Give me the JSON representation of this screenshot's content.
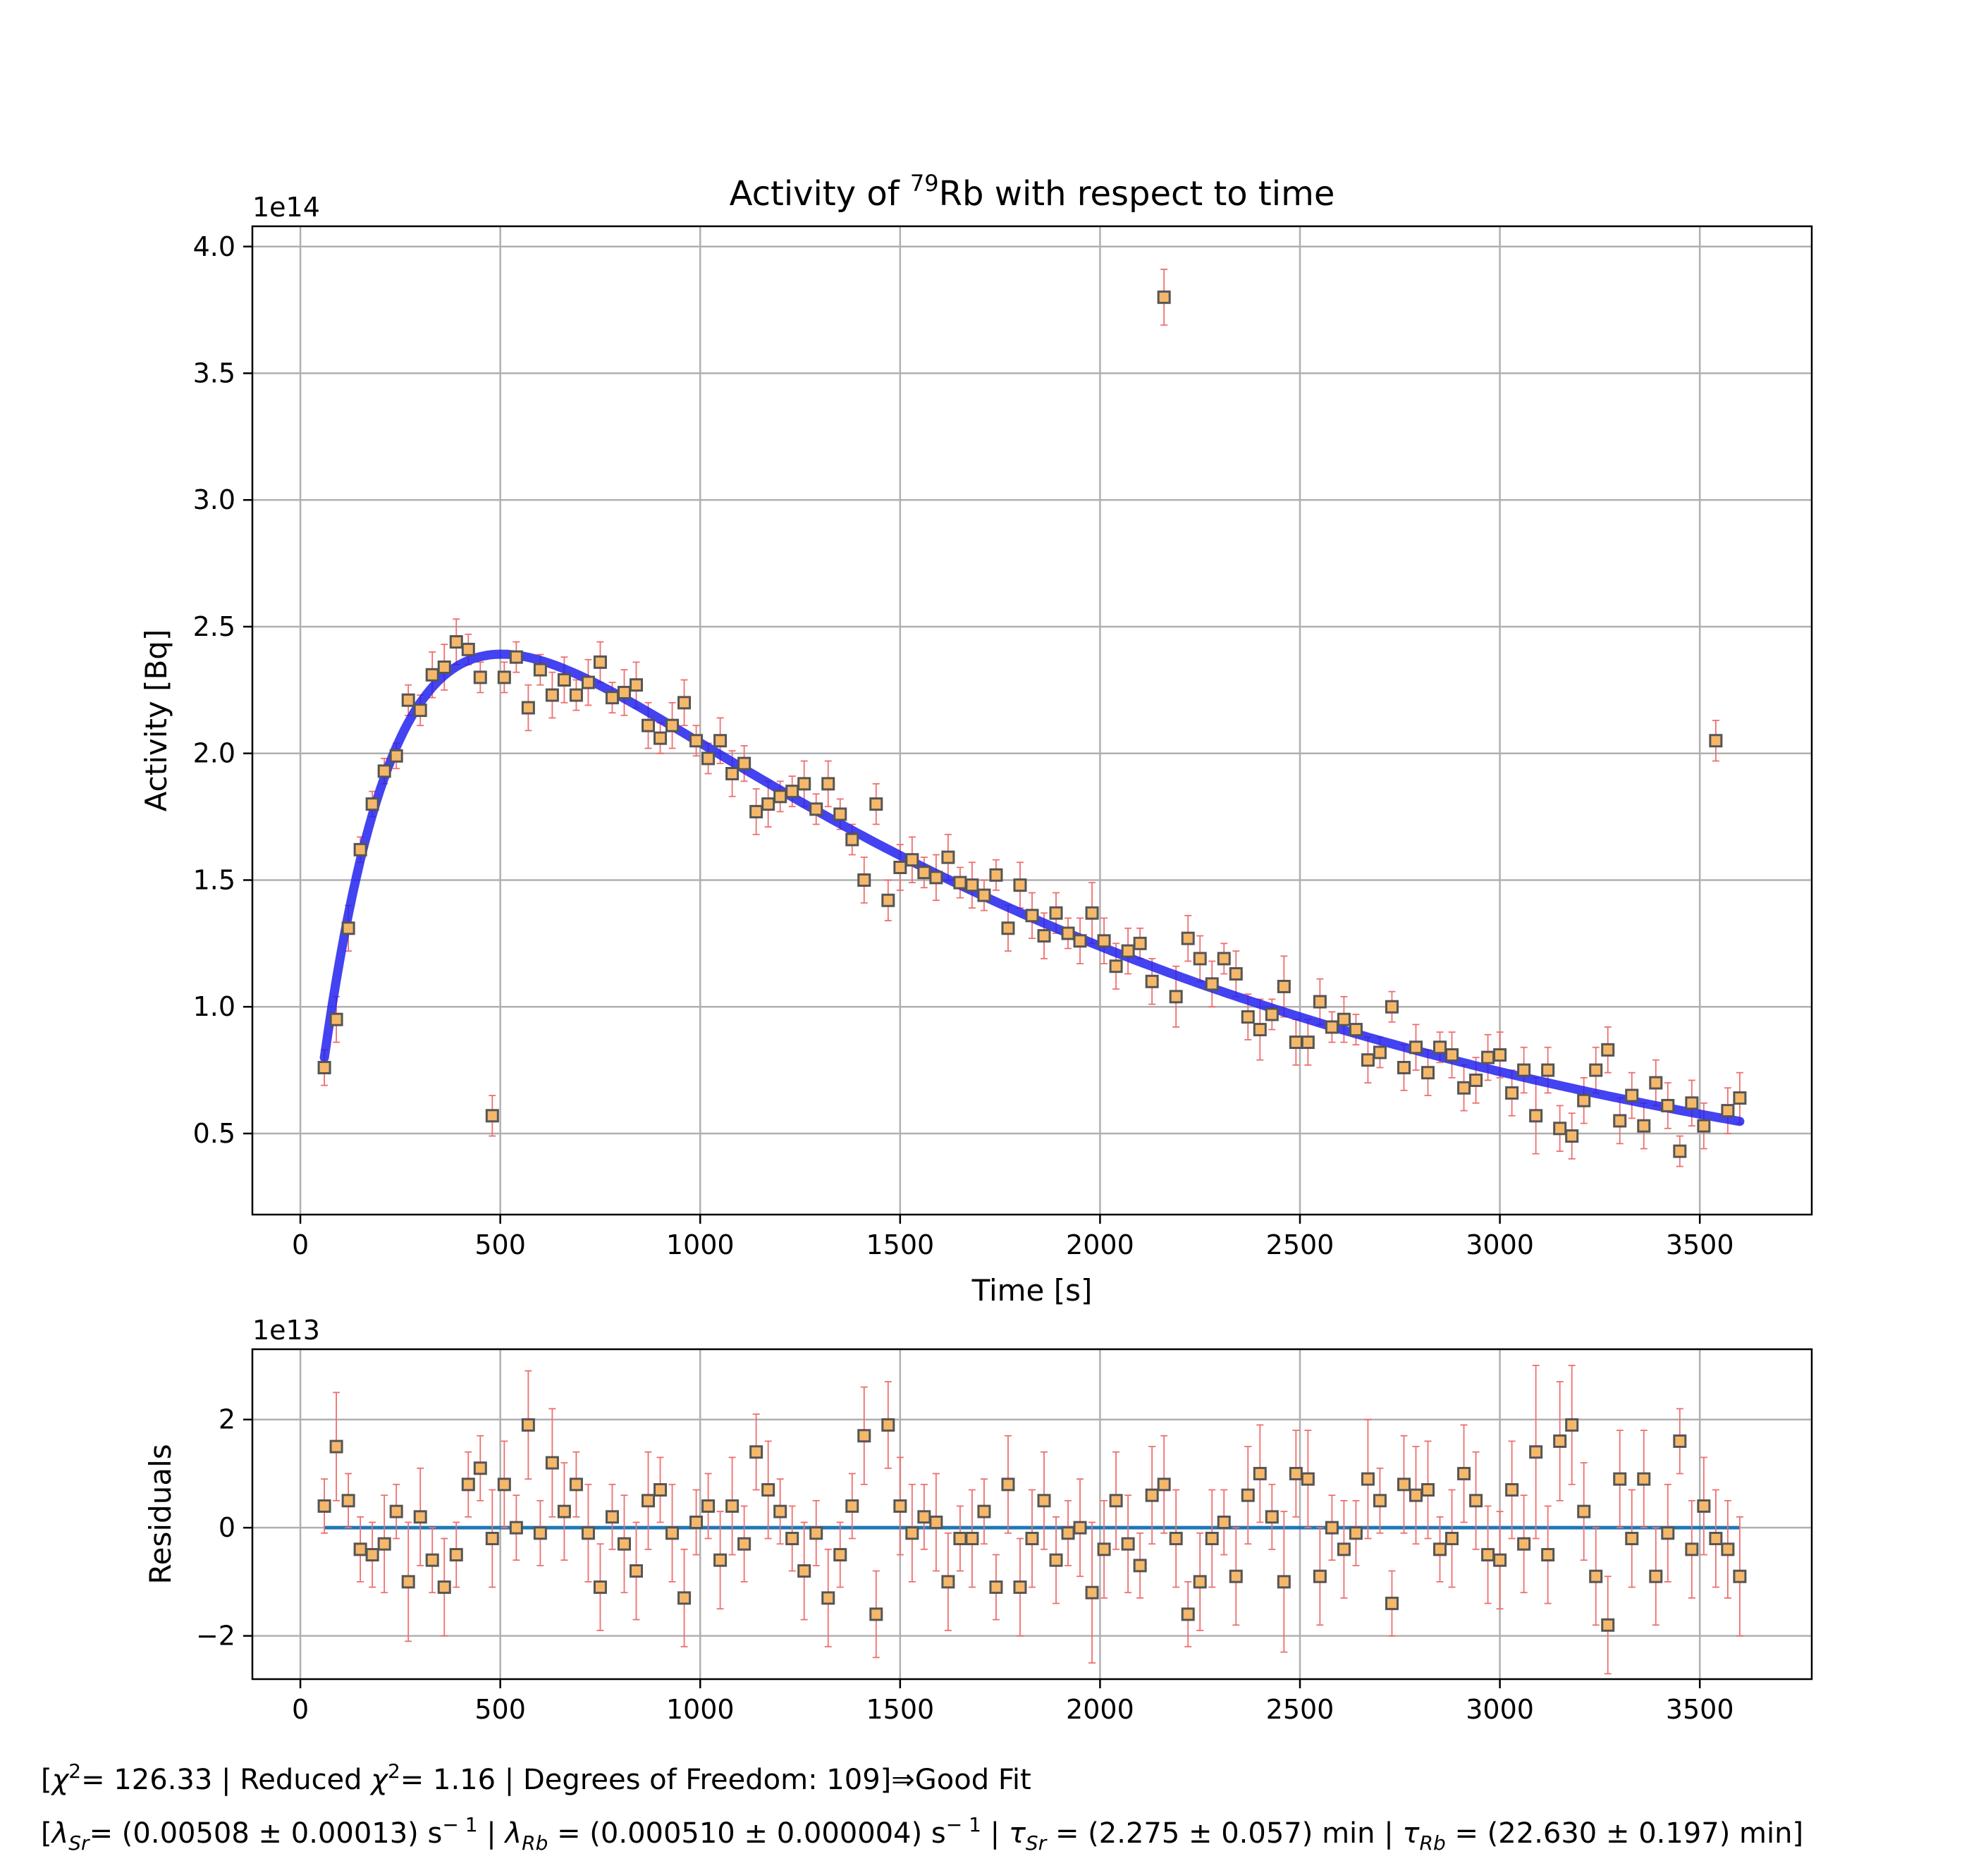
{
  "chart_data": [
    {
      "type": "scatter",
      "title": "Activity of 79Rb with respect to time",
      "title_parts": {
        "pre": "Activity of ",
        "sup": "79",
        "post": "Rb with respect to time"
      },
      "xlabel": "Time [s]",
      "ylabel": "Activity [Bq]",
      "offset_text": "1e14",
      "xlim": [
        -120,
        3780
      ],
      "ylim": [
        0.18,
        4.08
      ],
      "xticks": [
        0,
        500,
        1000,
        1500,
        2000,
        2500,
        3000,
        3500
      ],
      "xtick_labels": [
        "0",
        "500",
        "1000",
        "1500",
        "2000",
        "2500",
        "3000",
        "3500"
      ],
      "yticks": [
        0.5,
        1.0,
        1.5,
        2.0,
        2.5,
        3.0,
        3.5,
        4.0
      ],
      "ytick_labels": [
        "0.5",
        "1.0",
        "1.5",
        "2.0",
        "2.5",
        "3.0",
        "3.5",
        "4.0"
      ],
      "grid": true,
      "fit_color": "#2222ee",
      "point_color": "#f5b86a",
      "error_color": "#ef6f6f",
      "fit": {
        "model": "bateman",
        "lambda_sr": 0.00508,
        "lambda_rb": 0.00051,
        "x_range": [
          60,
          3600
        ]
      },
      "x": [
        60,
        90,
        120,
        150,
        180,
        210,
        240,
        270,
        300,
        330,
        360,
        390,
        420,
        450,
        480,
        510,
        540,
        570,
        600,
        630,
        660,
        690,
        720,
        750,
        780,
        810,
        840,
        870,
        900,
        930,
        960,
        990,
        1020,
        1050,
        1080,
        1110,
        1140,
        1170,
        1200,
        1230,
        1260,
        1290,
        1320,
        1350,
        1380,
        1410,
        1440,
        1470,
        1500,
        1530,
        1560,
        1590,
        1620,
        1650,
        1680,
        1710,
        1740,
        1770,
        1800,
        1830,
        1860,
        1890,
        1920,
        1950,
        1980,
        2010,
        2040,
        2070,
        2100,
        2130,
        2160,
        2190,
        2220,
        2250,
        2280,
        2310,
        2340,
        2370,
        2400,
        2430,
        2460,
        2490,
        2520,
        2550,
        2580,
        2610,
        2640,
        2670,
        2700,
        2730,
        2760,
        2790,
        2820,
        2850,
        2880,
        2910,
        2940,
        2970,
        3000,
        3030,
        3060,
        3090,
        3120,
        3150,
        3180,
        3210,
        3240,
        3270,
        3300,
        3330,
        3360,
        3390,
        3420,
        3450,
        3480,
        3510,
        3540,
        3570,
        3600
      ],
      "y": [
        0.76,
        0.95,
        1.31,
        1.62,
        1.8,
        1.93,
        1.99,
        2.21,
        2.17,
        2.31,
        2.34,
        2.44,
        2.41,
        2.3,
        0.57,
        2.3,
        2.38,
        2.18,
        2.33,
        2.23,
        2.29,
        2.23,
        2.28,
        2.36,
        2.22,
        2.24,
        2.27,
        2.11,
        2.06,
        2.11,
        2.2,
        2.05,
        1.98,
        2.05,
        1.92,
        1.96,
        1.77,
        1.8,
        1.83,
        1.85,
        1.88,
        1.78,
        1.88,
        1.76,
        1.66,
        1.5,
        1.8,
        1.42,
        1.55,
        1.58,
        1.53,
        1.51,
        1.59,
        1.49,
        1.48,
        1.44,
        1.52,
        1.31,
        1.48,
        1.36,
        1.28,
        1.37,
        1.29,
        1.26,
        1.37,
        1.26,
        1.16,
        1.22,
        1.25,
        1.1,
        3.8,
        1.04,
        1.27,
        1.19,
        1.09,
        1.19,
        1.13,
        0.96,
        0.91,
        0.97,
        1.08,
        0.86,
        0.86,
        1.02,
        0.92,
        0.95,
        0.91,
        0.79,
        0.82,
        1.0,
        0.76,
        0.84,
        0.74,
        0.84,
        0.81,
        0.68,
        0.71,
        0.8,
        0.81,
        0.66,
        0.75,
        0.57,
        0.75,
        0.52,
        0.49,
        0.63,
        0.75,
        0.83,
        0.55,
        0.65,
        0.53,
        0.7,
        0.61,
        0.43,
        0.62,
        0.53,
        2.05,
        0.59,
        0.64
      ],
      "yerr": [
        0.07,
        0.09,
        0.09,
        0.05,
        0.05,
        0.05,
        0.05,
        0.06,
        0.06,
        0.09,
        0.09,
        0.09,
        0.06,
        0.06,
        0.08,
        0.06,
        0.06,
        0.09,
        0.06,
        0.09,
        0.09,
        0.06,
        0.09,
        0.08,
        0.06,
        0.09,
        0.09,
        0.09,
        0.06,
        0.09,
        0.09,
        0.06,
        0.06,
        0.09,
        0.09,
        0.07,
        0.09,
        0.09,
        0.06,
        0.06,
        0.09,
        0.06,
        0.09,
        0.06,
        0.06,
        0.09,
        0.08,
        0.08,
        0.09,
        0.09,
        0.06,
        0.09,
        0.09,
        0.06,
        0.09,
        0.06,
        0.06,
        0.09,
        0.09,
        0.09,
        0.09,
        0.08,
        0.06,
        0.09,
        0.12,
        0.09,
        0.09,
        0.09,
        0.06,
        0.09,
        0.11,
        0.12,
        0.09,
        0.09,
        0.09,
        0.06,
        0.09,
        0.09,
        0.12,
        0.06,
        0.12,
        0.09,
        0.09,
        0.09,
        0.06,
        0.09,
        0.06,
        0.09,
        0.06,
        0.06,
        0.09,
        0.09,
        0.09,
        0.06,
        0.09,
        0.09,
        0.09,
        0.09,
        0.09,
        0.09,
        0.09,
        0.15,
        0.09,
        0.09,
        0.09,
        0.09,
        0.09,
        0.09,
        0.09,
        0.09,
        0.09,
        0.09,
        0.09,
        0.06,
        0.09,
        0.09,
        0.08,
        0.09,
        0.1
      ]
    },
    {
      "type": "scatter",
      "title": "",
      "xlabel": "",
      "ylabel": "Residuals",
      "offset_text": "1e13",
      "xlim": [
        -120,
        3780
      ],
      "ylim": [
        -2.8,
        3.3
      ],
      "xticks": [
        0,
        500,
        1000,
        1500,
        2000,
        2500,
        3000,
        3500
      ],
      "xtick_labels": [
        "0",
        "500",
        "1000",
        "1500",
        "2000",
        "2500",
        "3000",
        "3500"
      ],
      "yticks": [
        -2,
        0,
        2
      ],
      "ytick_labels": [
        "−2",
        "0",
        "2"
      ],
      "grid": true,
      "zero_line_color": "#1f77b4",
      "point_color": "#f5b86a",
      "error_color": "#ef6f6f",
      "x": [
        60,
        90,
        120,
        150,
        180,
        210,
        240,
        270,
        300,
        330,
        360,
        390,
        420,
        450,
        480,
        510,
        540,
        570,
        600,
        630,
        660,
        690,
        720,
        750,
        780,
        810,
        840,
        870,
        900,
        930,
        960,
        990,
        1020,
        1050,
        1080,
        1110,
        1140,
        1170,
        1200,
        1230,
        1260,
        1290,
        1320,
        1350,
        1380,
        1410,
        1440,
        1470,
        1500,
        1530,
        1560,
        1590,
        1620,
        1650,
        1680,
        1710,
        1740,
        1770,
        1800,
        1830,
        1860,
        1890,
        1920,
        1950,
        1980,
        2010,
        2040,
        2070,
        2100,
        2130,
        2160,
        2190,
        2220,
        2250,
        2280,
        2310,
        2340,
        2370,
        2400,
        2430,
        2460,
        2490,
        2520,
        2550,
        2580,
        2610,
        2640,
        2670,
        2700,
        2730,
        2760,
        2790,
        2820,
        2850,
        2880,
        2910,
        2940,
        2970,
        3000,
        3030,
        3060,
        3090,
        3120,
        3150,
        3180,
        3210,
        3240,
        3270,
        3300,
        3330,
        3360,
        3390,
        3420,
        3450,
        3480,
        3510,
        3540,
        3570,
        3600
      ],
      "y": [
        0.4,
        1.5,
        0.5,
        -0.4,
        -0.5,
        -0.3,
        0.3,
        -1.0,
        0.2,
        -0.6,
        -1.1,
        -0.5,
        0.8,
        1.1,
        -0.2,
        0.8,
        0.0,
        1.9,
        -0.1,
        1.2,
        0.3,
        0.8,
        -0.1,
        -1.1,
        0.2,
        -0.3,
        -0.8,
        0.5,
        0.7,
        -0.1,
        -1.3,
        0.1,
        0.4,
        -0.6,
        0.4,
        -0.3,
        1.4,
        0.7,
        0.3,
        -0.2,
        -0.8,
        -0.1,
        -1.3,
        -0.5,
        0.4,
        1.7,
        -1.6,
        1.9,
        0.4,
        -0.1,
        0.2,
        0.1,
        -1.0,
        -0.2,
        -0.2,
        0.3,
        -1.1,
        0.8,
        -1.1,
        -0.2,
        0.5,
        -0.6,
        -0.1,
        0.0,
        -1.2,
        -0.4,
        0.5,
        -0.3,
        -0.7,
        0.6,
        0.8,
        -0.2,
        -1.6,
        -1.0,
        -0.2,
        0.1,
        -0.9,
        0.6,
        1.0,
        0.2,
        -1.0,
        1.0,
        0.9,
        -0.9,
        0.0,
        -0.4,
        -0.1,
        0.9,
        0.5,
        -1.4,
        0.8,
        0.6,
        0.7,
        -0.4,
        -0.2,
        1.0,
        0.5,
        -0.5,
        -0.6,
        0.7,
        -0.3,
        1.4,
        -0.5,
        1.6,
        1.9,
        0.3,
        -0.9,
        -1.8,
        0.9,
        -0.2,
        0.9,
        -0.9,
        -0.1,
        1.6,
        -0.4,
        0.4,
        -0.2,
        -0.4,
        -0.9
      ],
      "yerr": [
        0.5,
        1.0,
        0.5,
        0.6,
        0.6,
        0.9,
        0.5,
        1.1,
        0.9,
        0.6,
        0.9,
        0.6,
        0.6,
        0.6,
        0.9,
        0.8,
        0.6,
        1.0,
        0.6,
        1.0,
        0.9,
        0.6,
        0.9,
        0.8,
        0.6,
        0.9,
        0.9,
        0.9,
        0.6,
        0.9,
        0.9,
        0.6,
        0.6,
        0.9,
        0.9,
        0.7,
        0.7,
        0.9,
        0.6,
        0.6,
        0.9,
        0.6,
        0.9,
        0.6,
        0.6,
        0.9,
        0.8,
        0.8,
        0.9,
        0.9,
        0.6,
        0.9,
        0.9,
        0.6,
        0.9,
        0.6,
        0.6,
        0.9,
        0.9,
        0.9,
        0.9,
        0.8,
        0.6,
        0.9,
        1.3,
        0.9,
        0.9,
        0.9,
        0.6,
        0.9,
        0.9,
        0.9,
        0.6,
        0.9,
        0.9,
        0.6,
        0.9,
        0.9,
        0.9,
        0.6,
        1.3,
        0.8,
        0.9,
        0.9,
        0.6,
        0.9,
        0.6,
        1.1,
        0.6,
        0.6,
        0.9,
        0.9,
        0.9,
        0.6,
        0.9,
        0.9,
        0.9,
        0.9,
        0.9,
        0.9,
        0.9,
        1.6,
        0.9,
        1.1,
        1.1,
        0.9,
        0.9,
        0.9,
        0.9,
        0.9,
        0.9,
        0.9,
        0.9,
        0.6,
        0.9,
        0.9,
        0.9,
        0.9,
        1.1
      ]
    }
  ],
  "summary": {
    "chi2_value": "= 126.33",
    "reduced_label": "Reduced",
    "reduced_value": "= 1.16",
    "dof_text": "Degrees of Freedom: 109",
    "arrow": "⇒",
    "verdict": "Good Fit"
  },
  "params": {
    "lambda_sr_value": "= (0.00508 ± 0.00013) s",
    "lambda_rb_value": "= (0.000510 ± 0.000004) s",
    "tau_sr_value": "= (2.275 ± 0.057) min",
    "tau_rb_value": "= (22.630 ± 0.197) min",
    "sr_sub": "Sr",
    "rb_sub": "Rb",
    "inv_sup": "− 1"
  }
}
